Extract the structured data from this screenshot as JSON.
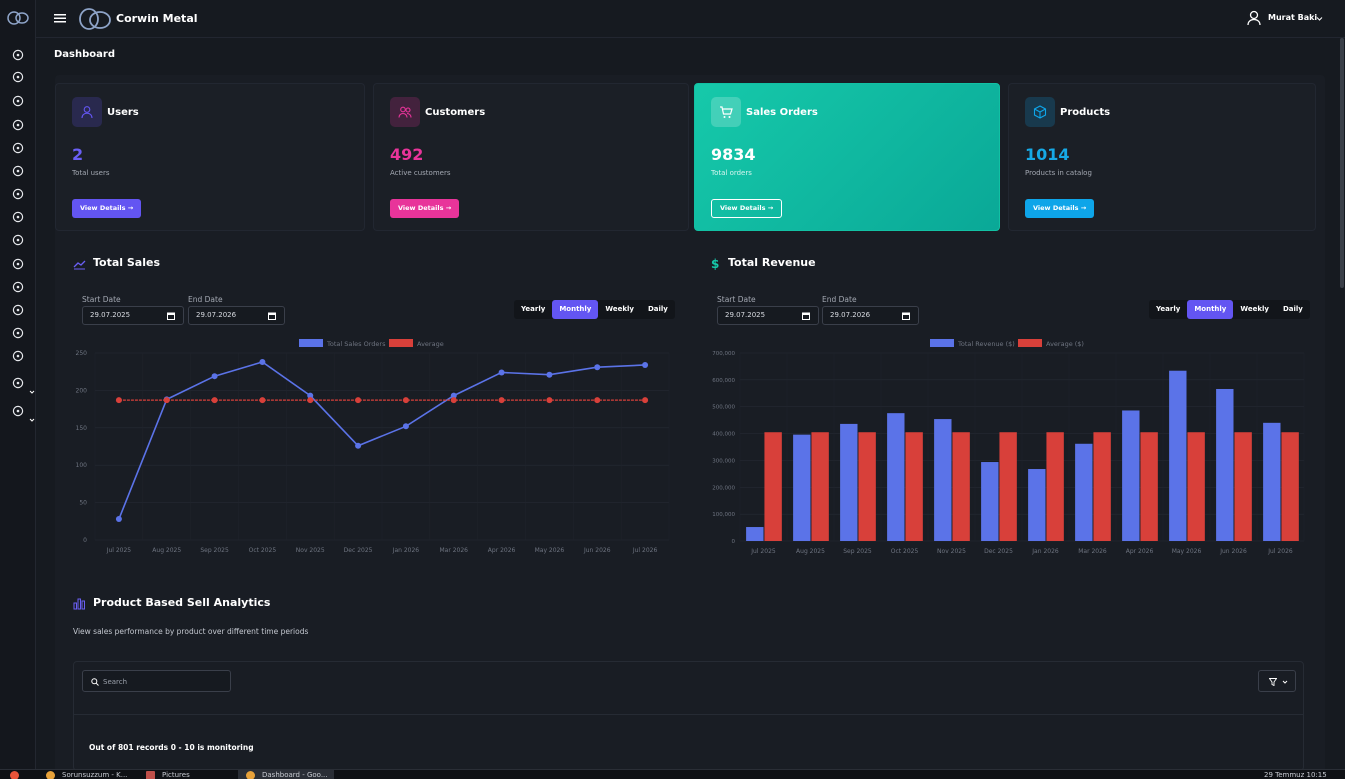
{
  "app": {
    "brand": "Corwin Metal",
    "user": "Murat Baki",
    "breadcrumb": "Dashboard"
  },
  "sidebar": {
    "icons": [
      "logo-icon",
      "eye-icon",
      "users-icon",
      "history-icon",
      "copy-icon",
      "settings-icon",
      "layers-icon",
      "list-icon",
      "customers-icon",
      "cart-icon",
      "files-icon",
      "clipboard-icon",
      "box-icon",
      "document-icon",
      "report-icon",
      "cloud-icon",
      "gear-icon"
    ]
  },
  "cards": [
    {
      "title": "Users",
      "value": "2",
      "subtitle": "Total users",
      "button": "View Details",
      "accent": "#6355f2",
      "valueColor": "#6a5ff5"
    },
    {
      "title": "Customers",
      "value": "492",
      "subtitle": "Active customers",
      "button": "View Details",
      "accent": "#e8349a",
      "valueColor": "#e8349a"
    },
    {
      "title": "Sales Orders",
      "value": "9834",
      "subtitle": "Total orders",
      "button": "View Details",
      "accent": "#16c9aa",
      "valueColor": "#ffffff"
    },
    {
      "title": "Products",
      "value": "1014",
      "subtitle": "Products in catalog",
      "button": "View Details",
      "accent": "#0ea5e9",
      "valueColor": "#16a9e6"
    }
  ],
  "sales": {
    "title": "Total Sales",
    "start_label": "Start Date",
    "end_label": "End Date",
    "start": "29.07.2025",
    "end": "29.07.2026",
    "periods": [
      "Yearly",
      "Monthly",
      "Weekly",
      "Daily"
    ],
    "active": "Monthly"
  },
  "revenue": {
    "title": "Total Revenue",
    "start_label": "Start Date",
    "end_label": "End Date",
    "start": "29.07.2025",
    "end": "29.07.2026",
    "periods": [
      "Yearly",
      "Monthly",
      "Weekly",
      "Daily"
    ],
    "active": "Monthly"
  },
  "chart_data": [
    {
      "type": "line",
      "categories": [
        "Jul 2025",
        "Aug 2025",
        "Sep 2025",
        "Oct 2025",
        "Nov 2025",
        "Dec 2025",
        "Jan 2026",
        "Mar 2026",
        "Apr 2026",
        "May 2026",
        "Jun 2026",
        "Jul 2026"
      ],
      "series": [
        {
          "name": "Total Sales Orders",
          "values": [
            28,
            188,
            219,
            238,
            193,
            126,
            152,
            193,
            224,
            221,
            231,
            234
          ],
          "color": "#5b73e8"
        },
        {
          "name": "Average",
          "values": [
            187,
            187,
            187,
            187,
            187,
            187,
            187,
            187,
            187,
            187,
            187,
            187
          ],
          "color": "#d8403a"
        }
      ],
      "yticks": [
        0,
        50,
        100,
        150,
        200,
        250
      ],
      "ylim": [
        0,
        250
      ],
      "legend": "top"
    },
    {
      "type": "bar",
      "categories": [
        "Jul 2025",
        "Aug 2025",
        "Sep 2025",
        "Oct 2025",
        "Nov 2025",
        "Dec 2025",
        "Jan 2026",
        "Mar 2026",
        "Apr 2026",
        "May 2026",
        "Jun 2026",
        "Jul 2026"
      ],
      "series": [
        {
          "name": "Total Revenue ($)",
          "values": [
            52000,
            396000,
            436000,
            476000,
            454000,
            294000,
            268000,
            362000,
            486000,
            634000,
            566000,
            440000
          ],
          "color": "#5b73e8"
        },
        {
          "name": "Average ($)",
          "values": [
            405000,
            405000,
            405000,
            405000,
            405000,
            405000,
            405000,
            405000,
            405000,
            405000,
            405000,
            405000
          ],
          "color": "#d8403a"
        }
      ],
      "yticks": [
        "0",
        "100,000",
        "200,000",
        "300,000",
        "400,000",
        "500,000",
        "600,000",
        "700,000"
      ],
      "ylim": [
        0,
        700000
      ],
      "legend": "top"
    }
  ],
  "analytics": {
    "title": "Product Based Sell Analytics",
    "subtitle": "View sales performance by product over different time periods",
    "search_placeholder": "Search",
    "records": "Out of 801 records 0 - 10 is monitoring"
  },
  "taskbar": {
    "items": [
      "Sorunsuzzum - K...",
      "Pictures",
      "Dashboard - Goo..."
    ],
    "clock": "29 Temmuz 10:15"
  }
}
